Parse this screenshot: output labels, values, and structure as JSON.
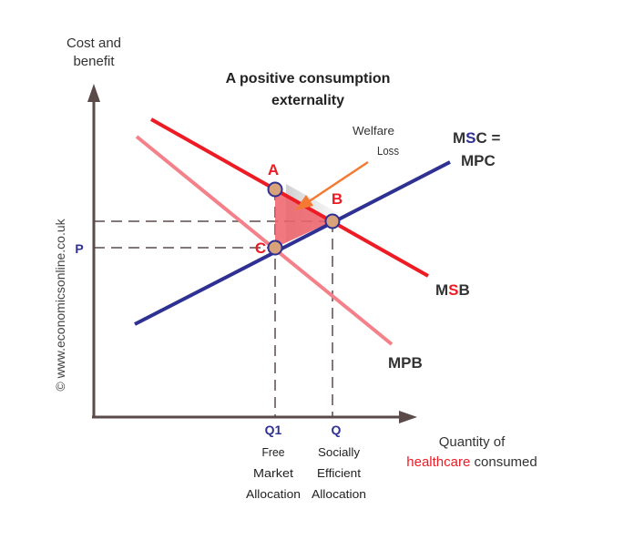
{
  "chart_data": {
    "type": "diagram",
    "title_line1": "A positive consumption",
    "title_line2": "externality",
    "ylabel_line1": "Cost and",
    "ylabel_line2": "benefit",
    "xlabel_line1": "Quantity of",
    "xlabel_word_highlight": "healthcare",
    "xlabel_word_rest": " consumed",
    "copyright": "© www.economicsonline.co.uk",
    "price_label": "P",
    "q1_label": "Q1",
    "q1_desc": [
      "Free",
      "Market",
      "Allocation"
    ],
    "q_label": "Q",
    "q_desc": [
      "Socially",
      "Efficient",
      "Allocation"
    ],
    "welfare_line1": "Welfare",
    "welfare_line2": "Loss",
    "msc_prefix": "M",
    "msc_mid": "S",
    "msc_suffix": "C =",
    "mpc_label": "MPC",
    "msb_prefix": "M",
    "msb_mid": "S",
    "msb_suffix": "B",
    "mpb_label": "MPB",
    "point_a": "A",
    "point_b": "B",
    "point_c": "C",
    "colors": {
      "supply": "#2e3192",
      "msb": "#ed1c24",
      "mpb": "#f4808a",
      "axis": "#5a4a4a",
      "triangle": "#f0606a",
      "point_fill": "#d8a27a",
      "highlight_red": "#ed1c24",
      "highlight_blue": "#2e3192",
      "arrow": "#f47a33"
    }
  }
}
